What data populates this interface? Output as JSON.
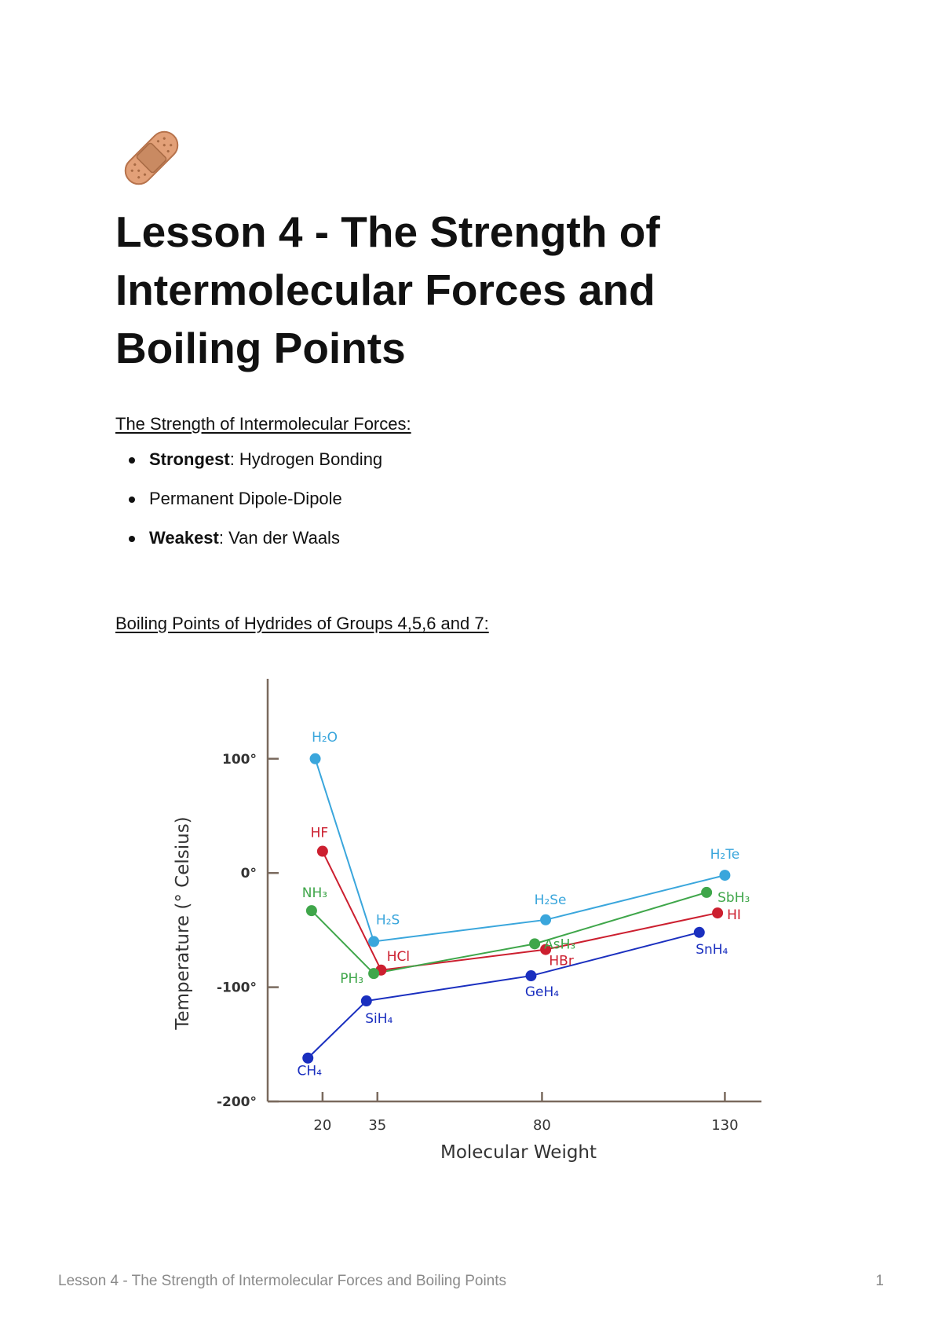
{
  "document": {
    "title": "Lesson 4 - The Strength of Intermolecular Forces and Boiling Points",
    "section1_heading": "The Strength of Intermolecular Forces:",
    "forces": [
      {
        "label": "Strongest",
        "text": "Hydrogen Bonding"
      },
      {
        "label": "",
        "text": "Permanent Dipole-Dipole"
      },
      {
        "label": "Weakest",
        "text": "Van der Waals"
      }
    ],
    "section2_heading": "Boiling Points of Hydrides of Groups 4,5,6 and 7:",
    "footer_text": "Lesson 4 - The Strength of Intermolecular Forces and Boiling Points",
    "page_number": "1",
    "icon": "adhesive-bandage-icon"
  },
  "chart_data": {
    "type": "line",
    "title": "",
    "xlabel": "Molecular Weight",
    "ylabel": "Temperature (° Celsius)",
    "x_ticks": [
      20,
      35,
      80,
      130
    ],
    "y_ticks": [
      {
        "value": 100,
        "label": "100°"
      },
      {
        "value": 0,
        "label": "0°"
      },
      {
        "value": -100,
        "label": "-100°"
      },
      {
        "value": -200,
        "label": "-200°"
      }
    ],
    "xlim": [
      5,
      140
    ],
    "ylim": [
      -200,
      170
    ],
    "grid": false,
    "series": [
      {
        "color": "#3aa6dc",
        "points": [
          {
            "x": 18,
            "y": 100,
            "label": "H₂O"
          },
          {
            "x": 34,
            "y": -60,
            "label": "H₂S"
          },
          {
            "x": 81,
            "y": -41,
            "label": "H₂Se"
          },
          {
            "x": 130,
            "y": -2,
            "label": "H₂Te"
          }
        ]
      },
      {
        "color": "#cc1f2f",
        "points": [
          {
            "x": 20,
            "y": 19,
            "label": "HF"
          },
          {
            "x": 36,
            "y": -85,
            "label": "HCl"
          },
          {
            "x": 81,
            "y": -67,
            "label": "HBr"
          },
          {
            "x": 128,
            "y": -35,
            "label": "HI"
          }
        ]
      },
      {
        "color": "#3fa64a",
        "points": [
          {
            "x": 17,
            "y": -33,
            "label": "NH₃"
          },
          {
            "x": 34,
            "y": -88,
            "label": "PH₃"
          },
          {
            "x": 78,
            "y": -62,
            "label": "AsH₃"
          },
          {
            "x": 125,
            "y": -17,
            "label": "SbH₃"
          }
        ]
      },
      {
        "color": "#1a2fbf",
        "points": [
          {
            "x": 16,
            "y": -162,
            "label": "CH₄"
          },
          {
            "x": 32,
            "y": -112,
            "label": "SiH₄"
          },
          {
            "x": 77,
            "y": -90,
            "label": "GeH₄"
          },
          {
            "x": 123,
            "y": -52,
            "label": "SnH₄"
          }
        ]
      }
    ]
  }
}
